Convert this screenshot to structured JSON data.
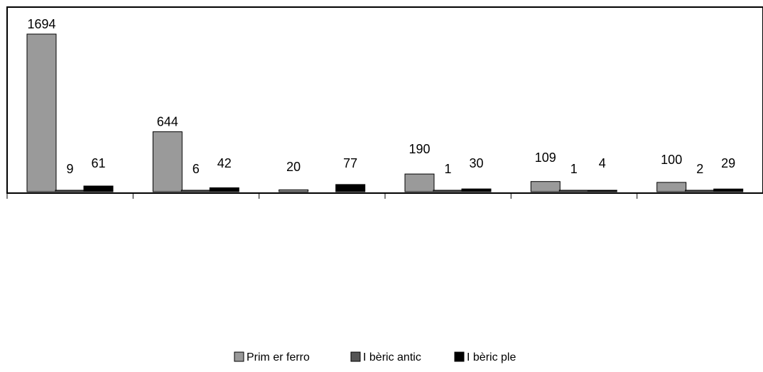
{
  "chart_data": {
    "type": "bar",
    "categories": [
      "",
      "",
      "",
      "",
      "",
      ""
    ],
    "series": [
      {
        "name": "Primer ferro",
        "values": [
          1694,
          644,
          20,
          190,
          109,
          100
        ],
        "color": "#9a9a9a",
        "data_labels": [
          "1694",
          "644",
          "20",
          "190",
          "109",
          "100"
        ]
      },
      {
        "name": "Ibèric antic",
        "values": [
          9,
          6,
          0,
          1,
          1,
          2
        ],
        "color": "#555555",
        "data_labels": [
          "9",
          "6",
          "",
          "1",
          "1",
          "2"
        ]
      },
      {
        "name": "Ibèric ple",
        "values": [
          61,
          42,
          77,
          30,
          4,
          29
        ],
        "color": "#000000",
        "data_labels": [
          "61",
          "42",
          "77",
          "30",
          "4",
          "29"
        ]
      }
    ],
    "title": "",
    "xlabel": "",
    "ylabel": "",
    "ylim": [
      0,
      1694
    ],
    "grid": false,
    "legend_position": "bottom",
    "legend_labels": [
      "Prim er ferro",
      "I bèric antic",
      "I bèric ple"
    ]
  }
}
